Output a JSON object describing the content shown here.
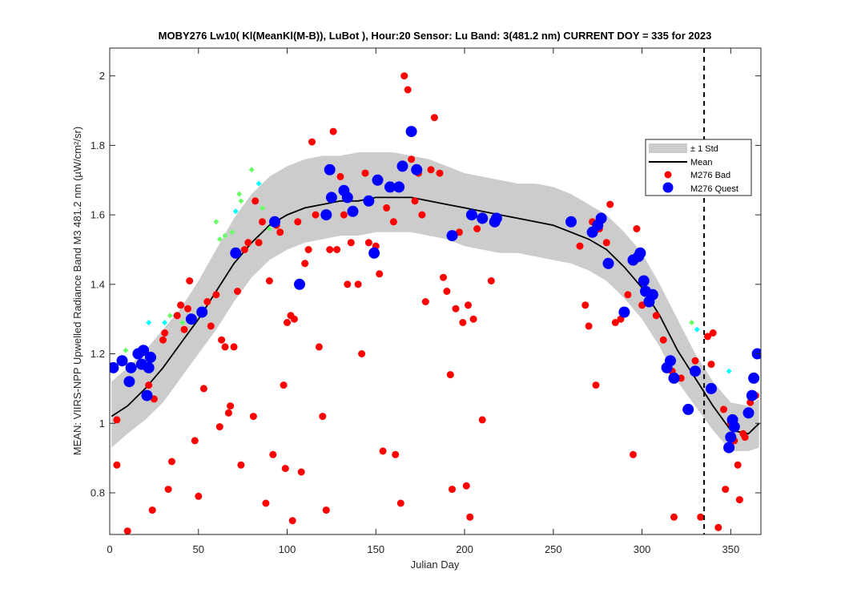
{
  "chart_data": {
    "type": "scatter",
    "title": "MOBY276   Lw10( Kl(MeanKl(M-B)), LuBot ),   Hour:20 Sensor: Lu Band: 3(481.2 nm)   CURRENT DOY = 335 for 2023",
    "xlabel": "Julian Day",
    "ylabel": "MEAN: VIIRS-NPP Upwelled Radiance Band M3 481.2 nm (µW/cm²/sr)",
    "xlim": [
      0,
      367
    ],
    "ylim": [
      0.68,
      2.08
    ],
    "x_ticks": [
      0,
      50,
      100,
      150,
      200,
      250,
      300,
      350
    ],
    "y_ticks": [
      0.8,
      1.0,
      1.2,
      1.4,
      1.6,
      1.8,
      2.0
    ],
    "x_tick_labels": [
      "0",
      "50",
      "100",
      "150",
      "200",
      "250",
      "300",
      "350"
    ],
    "y_tick_labels": [
      "0.8",
      "1",
      "1.2",
      "1.4",
      "1.6",
      "1.8",
      "2"
    ],
    "grid": false,
    "legend_position": "top-right",
    "current_doy": 335,
    "colors": {
      "std_band": "#cccccc",
      "mean": "#000000",
      "bad": "#ff0000",
      "quest": "#0000ff",
      "green_points": "#66ff66",
      "cyan_points": "#00ffff",
      "current_line": "#000000"
    },
    "series": [
      {
        "name": "± 1 Std",
        "type": "band",
        "x": [
          1,
          10,
          20,
          30,
          40,
          50,
          60,
          70,
          80,
          90,
          100,
          110,
          120,
          130,
          140,
          150,
          160,
          170,
          180,
          190,
          200,
          210,
          220,
          230,
          240,
          250,
          260,
          270,
          280,
          290,
          300,
          310,
          320,
          330,
          340,
          350,
          360,
          366
        ],
        "lower": [
          0.93,
          0.97,
          1.01,
          1.06,
          1.13,
          1.2,
          1.27,
          1.35,
          1.42,
          1.47,
          1.5,
          1.52,
          1.53,
          1.54,
          1.54,
          1.55,
          1.55,
          1.55,
          1.54,
          1.53,
          1.51,
          1.5,
          1.49,
          1.49,
          1.48,
          1.47,
          1.46,
          1.44,
          1.41,
          1.36,
          1.3,
          1.22,
          1.12,
          1.05,
          0.98,
          0.92,
          0.92,
          0.93
        ],
        "upper": [
          1.12,
          1.16,
          1.21,
          1.27,
          1.33,
          1.41,
          1.5,
          1.59,
          1.66,
          1.71,
          1.74,
          1.76,
          1.77,
          1.77,
          1.78,
          1.78,
          1.78,
          1.77,
          1.76,
          1.74,
          1.72,
          1.71,
          1.7,
          1.69,
          1.69,
          1.68,
          1.66,
          1.63,
          1.6,
          1.55,
          1.49,
          1.4,
          1.3,
          1.2,
          1.12,
          1.06,
          1.05,
          1.07
        ]
      },
      {
        "name": "Mean",
        "type": "line",
        "x": [
          1,
          10,
          20,
          30,
          40,
          50,
          60,
          70,
          80,
          90,
          100,
          110,
          120,
          130,
          140,
          150,
          160,
          170,
          180,
          190,
          200,
          210,
          220,
          230,
          240,
          250,
          260,
          270,
          280,
          290,
          300,
          310,
          320,
          330,
          340,
          350,
          360,
          366
        ],
        "y": [
          1.02,
          1.05,
          1.1,
          1.16,
          1.23,
          1.3,
          1.38,
          1.46,
          1.52,
          1.57,
          1.6,
          1.62,
          1.63,
          1.64,
          1.64,
          1.65,
          1.65,
          1.65,
          1.64,
          1.63,
          1.62,
          1.61,
          1.6,
          1.59,
          1.58,
          1.57,
          1.55,
          1.53,
          1.5,
          1.45,
          1.39,
          1.31,
          1.21,
          1.13,
          1.05,
          0.98,
          0.97,
          1.0
        ]
      },
      {
        "name": "M276 Bad",
        "type": "scatter",
        "points": [
          [
            4,
            0.88
          ],
          [
            4,
            1.01
          ],
          [
            10,
            0.69
          ],
          [
            22,
            1.11
          ],
          [
            24,
            0.75
          ],
          [
            25,
            1.07
          ],
          [
            30,
            1.24
          ],
          [
            31,
            1.26
          ],
          [
            33,
            0.81
          ],
          [
            35,
            0.89
          ],
          [
            38,
            1.31
          ],
          [
            40,
            1.34
          ],
          [
            42,
            1.27
          ],
          [
            44,
            1.33
          ],
          [
            45,
            1.41
          ],
          [
            48,
            0.95
          ],
          [
            50,
            0.79
          ],
          [
            53,
            1.1
          ],
          [
            55,
            1.35
          ],
          [
            57,
            1.28
          ],
          [
            60,
            1.37
          ],
          [
            62,
            0.99
          ],
          [
            63,
            1.24
          ],
          [
            65,
            1.22
          ],
          [
            67,
            1.03
          ],
          [
            68,
            1.05
          ],
          [
            70,
            1.22
          ],
          [
            72,
            1.38
          ],
          [
            74,
            0.88
          ],
          [
            76,
            1.5
          ],
          [
            78,
            1.52
          ],
          [
            81,
            1.02
          ],
          [
            82,
            1.64
          ],
          [
            84,
            1.52
          ],
          [
            86,
            1.58
          ],
          [
            88,
            0.77
          ],
          [
            90,
            1.41
          ],
          [
            92,
            0.91
          ],
          [
            94,
            1.57
          ],
          [
            96,
            1.55
          ],
          [
            98,
            1.11
          ],
          [
            99,
            0.87
          ],
          [
            100,
            1.29
          ],
          [
            102,
            1.31
          ],
          [
            103,
            0.72
          ],
          [
            104,
            1.3
          ],
          [
            106,
            1.58
          ],
          [
            108,
            0.86
          ],
          [
            110,
            1.46
          ],
          [
            112,
            1.5
          ],
          [
            114,
            1.81
          ],
          [
            116,
            1.6
          ],
          [
            118,
            1.22
          ],
          [
            120,
            1.02
          ],
          [
            122,
            0.75
          ],
          [
            124,
            1.5
          ],
          [
            126,
            1.84
          ],
          [
            128,
            1.5
          ],
          [
            130,
            1.71
          ],
          [
            132,
            1.6
          ],
          [
            134,
            1.4
          ],
          [
            136,
            1.52
          ],
          [
            140,
            1.4
          ],
          [
            142,
            1.2
          ],
          [
            144,
            1.72
          ],
          [
            146,
            1.52
          ],
          [
            150,
            1.51
          ],
          [
            152,
            1.43
          ],
          [
            154,
            0.92
          ],
          [
            156,
            1.62
          ],
          [
            160,
            1.58
          ],
          [
            161,
            0.91
          ],
          [
            164,
            0.77
          ],
          [
            166,
            2.0
          ],
          [
            168,
            1.96
          ],
          [
            170,
            1.76
          ],
          [
            172,
            1.64
          ],
          [
            174,
            1.72
          ],
          [
            176,
            1.6
          ],
          [
            178,
            1.35
          ],
          [
            181,
            1.73
          ],
          [
            183,
            1.88
          ],
          [
            186,
            1.72
          ],
          [
            188,
            1.42
          ],
          [
            190,
            1.38
          ],
          [
            192,
            1.14
          ],
          [
            193,
            0.81
          ],
          [
            195,
            1.33
          ],
          [
            197,
            1.55
          ],
          [
            199,
            1.29
          ],
          [
            201,
            0.82
          ],
          [
            202,
            1.34
          ],
          [
            203,
            0.73
          ],
          [
            205,
            1.3
          ],
          [
            207,
            1.56
          ],
          [
            210,
            1.01
          ],
          [
            215,
            1.41
          ],
          [
            265,
            1.51
          ],
          [
            268,
            1.34
          ],
          [
            270,
            1.28
          ],
          [
            272,
            1.58
          ],
          [
            274,
            1.11
          ],
          [
            276,
            1.56
          ],
          [
            280,
            1.52
          ],
          [
            282,
            1.63
          ],
          [
            285,
            1.29
          ],
          [
            288,
            1.3
          ],
          [
            292,
            1.37
          ],
          [
            295,
            0.91
          ],
          [
            297,
            1.56
          ],
          [
            300,
            1.34
          ],
          [
            308,
            1.31
          ],
          [
            312,
            1.24
          ],
          [
            317,
            1.15
          ],
          [
            318,
            0.73
          ],
          [
            322,
            1.13
          ],
          [
            330,
            1.18
          ],
          [
            333,
            0.73
          ],
          [
            337,
            1.25
          ],
          [
            339,
            1.17
          ],
          [
            340,
            1.26
          ],
          [
            343,
            0.7
          ],
          [
            346,
            1.04
          ],
          [
            347,
            0.81
          ],
          [
            350,
            1.0
          ],
          [
            352,
            0.95
          ],
          [
            354,
            0.88
          ],
          [
            355,
            0.78
          ],
          [
            357,
            0.97
          ],
          [
            358,
            0.96
          ],
          [
            361,
            1.06
          ],
          [
            364,
            1.08
          ]
        ]
      },
      {
        "name": "M276 Quest",
        "type": "scatter",
        "points": [
          [
            2,
            1.16
          ],
          [
            7,
            1.18
          ],
          [
            11,
            1.12
          ],
          [
            12,
            1.16
          ],
          [
            16,
            1.2
          ],
          [
            18,
            1.17
          ],
          [
            19,
            1.21
          ],
          [
            21,
            1.08
          ],
          [
            22,
            1.16
          ],
          [
            23,
            1.19
          ],
          [
            46,
            1.3
          ],
          [
            52,
            1.32
          ],
          [
            71,
            1.49
          ],
          [
            93,
            1.58
          ],
          [
            107,
            1.4
          ],
          [
            122,
            1.6
          ],
          [
            124,
            1.73
          ],
          [
            125,
            1.65
          ],
          [
            132,
            1.67
          ],
          [
            134,
            1.65
          ],
          [
            137,
            1.61
          ],
          [
            146,
            1.64
          ],
          [
            149,
            1.49
          ],
          [
            151,
            1.7
          ],
          [
            158,
            1.68
          ],
          [
            163,
            1.68
          ],
          [
            165,
            1.74
          ],
          [
            170,
            1.84
          ],
          [
            173,
            1.73
          ],
          [
            193,
            1.54
          ],
          [
            204,
            1.6
          ],
          [
            210,
            1.59
          ],
          [
            217,
            1.58
          ],
          [
            218,
            1.59
          ],
          [
            260,
            1.58
          ],
          [
            272,
            1.55
          ],
          [
            275,
            1.57
          ],
          [
            277,
            1.59
          ],
          [
            281,
            1.46
          ],
          [
            290,
            1.32
          ],
          [
            295,
            1.47
          ],
          [
            298,
            1.48
          ],
          [
            299,
            1.49
          ],
          [
            301,
            1.41
          ],
          [
            302,
            1.38
          ],
          [
            304,
            1.35
          ],
          [
            306,
            1.37
          ],
          [
            314,
            1.16
          ],
          [
            316,
            1.18
          ],
          [
            318,
            1.13
          ],
          [
            326,
            1.04
          ],
          [
            330,
            1.15
          ],
          [
            339,
            1.1
          ],
          [
            349,
            0.93
          ],
          [
            350,
            0.96
          ],
          [
            351,
            1.01
          ],
          [
            352,
            0.99
          ],
          [
            360,
            1.03
          ],
          [
            362,
            1.08
          ],
          [
            363,
            1.13
          ],
          [
            365,
            1.2
          ]
        ]
      },
      {
        "name": "green",
        "type": "scatter",
        "points": [
          [
            9,
            1.21
          ],
          [
            34,
            1.31
          ],
          [
            60,
            1.58
          ],
          [
            65,
            1.54
          ],
          [
            73,
            1.66
          ],
          [
            74,
            1.64
          ],
          [
            80,
            1.73
          ],
          [
            86,
            1.62
          ],
          [
            328,
            1.29
          ],
          [
            41,
            1.29
          ],
          [
            69,
            1.55
          ],
          [
            90,
            1.56
          ],
          [
            62,
            1.53
          ]
        ]
      },
      {
        "name": "cyan",
        "type": "scatter",
        "points": [
          [
            22,
            1.29
          ],
          [
            31,
            1.29
          ],
          [
            37,
            1.31
          ],
          [
            71,
            1.61
          ],
          [
            84,
            1.69
          ],
          [
            331,
            1.27
          ],
          [
            349,
            1.15
          ]
        ]
      }
    ]
  }
}
